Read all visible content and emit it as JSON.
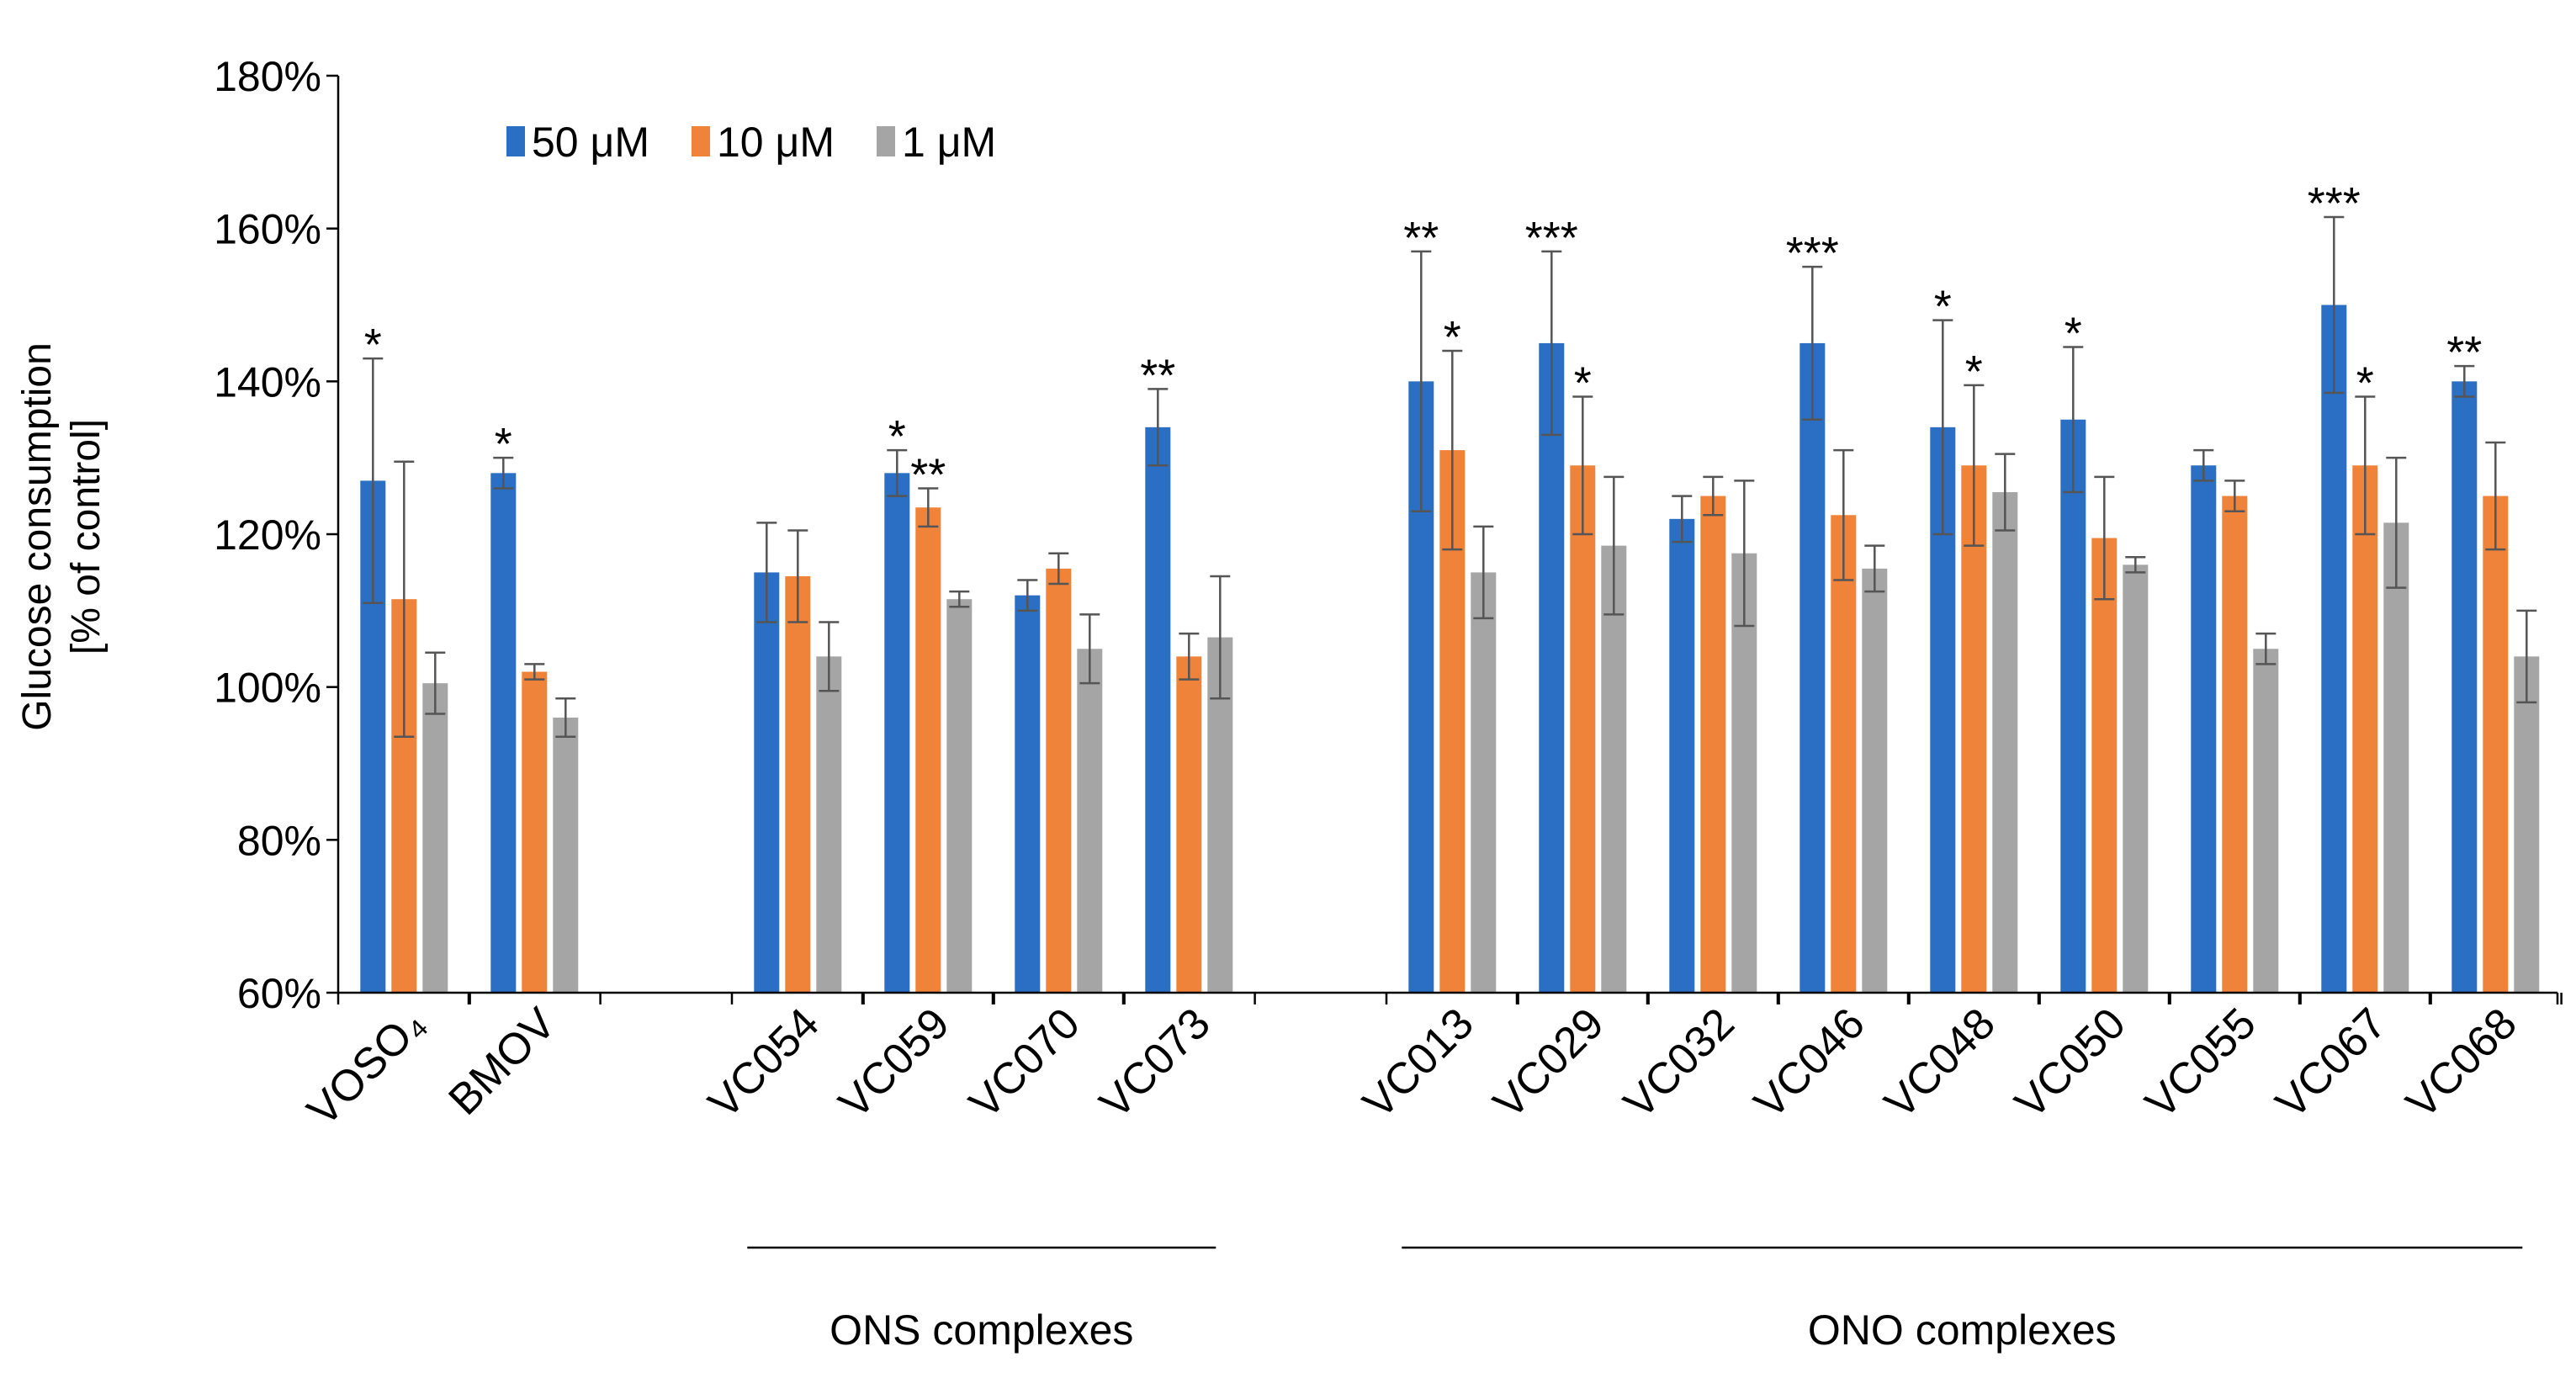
{
  "chart_data": {
    "type": "bar",
    "ylabel_lines": [
      "Glucose consumption",
      "[% of control]"
    ],
    "ylim": [
      60,
      180
    ],
    "yticks": [
      60,
      80,
      100,
      120,
      140,
      160,
      180
    ],
    "ytick_suffix": "%",
    "legend_position": "top-left",
    "grid": false,
    "categories": [
      "VOSO₄",
      "BMOV",
      "VC054",
      "VC059",
      "VC070",
      "VC073",
      "VC013",
      "VC029",
      "VC032",
      "VC046",
      "VC048",
      "VC050",
      "VC055",
      "VC067",
      "VC068"
    ],
    "category_group_index": [
      0,
      0,
      1,
      1,
      1,
      1,
      2,
      2,
      2,
      2,
      2,
      2,
      2,
      2,
      2
    ],
    "series": [
      {
        "name": "50 μM",
        "color": "#2a6fc4",
        "values": [
          127,
          128,
          115,
          128,
          112,
          134,
          140,
          145,
          122,
          145,
          134,
          135,
          129,
          150,
          140
        ],
        "errors": [
          16,
          2,
          6.5,
          3,
          2,
          5,
          17,
          12,
          3,
          10,
          14,
          9.5,
          2,
          11.5,
          2
        ],
        "significance": [
          "*",
          "*",
          "",
          "*",
          "",
          "**",
          "**",
          "***",
          "",
          "***",
          "*",
          "*",
          "",
          "***",
          "**"
        ]
      },
      {
        "name": "10 μM",
        "color": "#f0833a",
        "values": [
          111.5,
          102,
          114.5,
          123.5,
          115.5,
          104,
          131,
          129,
          125,
          122.5,
          129,
          119.5,
          125,
          129,
          125
        ],
        "errors": [
          18,
          1,
          6,
          2.5,
          2,
          3,
          13,
          9,
          2.5,
          8.5,
          10.5,
          8,
          2,
          9,
          7
        ],
        "significance": [
          "",
          "",
          "",
          "**",
          "",
          "",
          "*",
          "*",
          "",
          "",
          "*",
          "",
          "",
          "*",
          ""
        ]
      },
      {
        "name": "1 μM",
        "color": "#a5a5a5",
        "values": [
          100.5,
          96,
          104,
          111.5,
          105,
          106.5,
          115,
          118.5,
          117.5,
          115.5,
          125.5,
          116,
          105,
          121.5,
          104
        ],
        "errors": [
          4,
          2.5,
          4.5,
          1,
          4.5,
          8,
          6,
          9,
          9.5,
          3,
          5,
          1,
          2,
          8.5,
          6
        ],
        "significance": [
          "",
          "",
          "",
          "",
          "",
          "",
          "",
          "",
          "",
          "",
          "",
          "",
          "",
          "",
          ""
        ]
      }
    ],
    "group_labels": [
      {
        "label": "ONS complexes",
        "first_category": "VC054",
        "last_category": "VC073"
      },
      {
        "label": "ONO complexes",
        "first_category": "VC013",
        "last_category": "VC068"
      }
    ]
  }
}
